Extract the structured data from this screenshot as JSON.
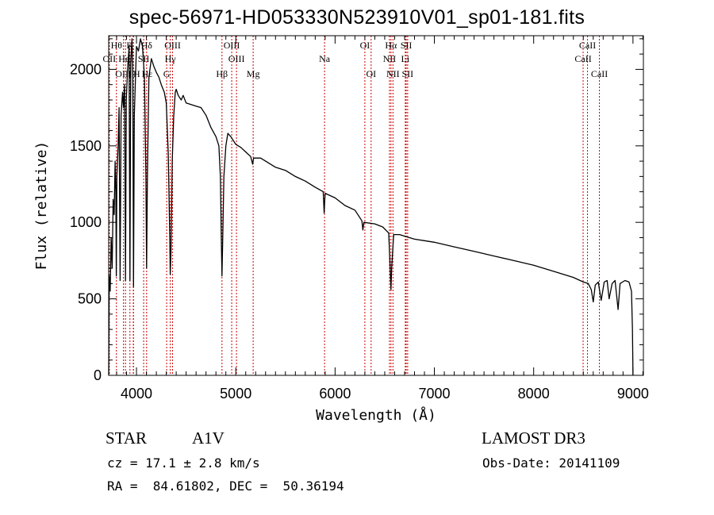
{
  "chart_data": {
    "type": "line",
    "title": "spec-56971-HD053330N523910V01_sp01-181.fits",
    "xlabel": "Wavelength (Å)",
    "ylabel": "Flux (relative)",
    "xlim": [
      3720,
      9105
    ],
    "ylim": [
      0,
      2220
    ],
    "xticks": [
      4000,
      5000,
      6000,
      7000,
      8000,
      9000
    ],
    "xtick_labels": [
      "4000",
      "5000",
      "6000",
      "7000",
      "8000",
      "9000"
    ],
    "yticks": [
      0,
      500,
      1000,
      1500,
      2000
    ],
    "ytick_labels": [
      "0",
      "500",
      "1000",
      "1500",
      "2000"
    ],
    "grid": false,
    "series": [
      {
        "name": "spectrum",
        "color": "#000000",
        "points": [
          [
            3720,
            0
          ],
          [
            3722,
            300
          ],
          [
            3725,
            650
          ],
          [
            3735,
            550
          ],
          [
            3745,
            900
          ],
          [
            3755,
            700
          ],
          [
            3765,
            1150
          ],
          [
            3775,
            1050
          ],
          [
            3785,
            1400
          ],
          [
            3792,
            1200
          ],
          [
            3797,
            650
          ],
          [
            3802,
            1300
          ],
          [
            3815,
            1500
          ],
          [
            3825,
            1750
          ],
          [
            3835,
            620
          ],
          [
            3845,
            1700
          ],
          [
            3860,
            1850
          ],
          [
            3869,
            1750
          ],
          [
            3880,
            1900
          ],
          [
            3889,
            620
          ],
          [
            3897,
            1800
          ],
          [
            3910,
            2000
          ],
          [
            3925,
            2150
          ],
          [
            3934,
            620
          ],
          [
            3942,
            2050
          ],
          [
            3955,
            2200
          ],
          [
            3963,
            1950
          ],
          [
            3970,
            580
          ],
          [
            3978,
            1700
          ],
          [
            3990,
            1950
          ],
          [
            4000,
            2150
          ],
          [
            4020,
            2120
          ],
          [
            4040,
            2200
          ],
          [
            4060,
            2150
          ],
          [
            4080,
            1950
          ],
          [
            4095,
            1300
          ],
          [
            4102,
            700
          ],
          [
            4110,
            1300
          ],
          [
            4125,
            1950
          ],
          [
            4150,
            2070
          ],
          [
            4175,
            2020
          ],
          [
            4200,
            1980
          ],
          [
            4225,
            1950
          ],
          [
            4250,
            1900
          ],
          [
            4280,
            1850
          ],
          [
            4300,
            1780
          ],
          [
            4320,
            1450
          ],
          [
            4335,
            900
          ],
          [
            4340,
            660
          ],
          [
            4347,
            800
          ],
          [
            4360,
            1400
          ],
          [
            4375,
            1700
          ],
          [
            4390,
            1850
          ],
          [
            4400,
            1870
          ],
          [
            4420,
            1830
          ],
          [
            4450,
            1800
          ],
          [
            4470,
            1830
          ],
          [
            4500,
            1780
          ],
          [
            4550,
            1770
          ],
          [
            4600,
            1760
          ],
          [
            4650,
            1750
          ],
          [
            4700,
            1700
          ],
          [
            4750,
            1620
          ],
          [
            4800,
            1560
          ],
          [
            4830,
            1500
          ],
          [
            4845,
            1300
          ],
          [
            4855,
            850
          ],
          [
            4861,
            650
          ],
          [
            4867,
            850
          ],
          [
            4880,
            1300
          ],
          [
            4900,
            1500
          ],
          [
            4920,
            1582
          ],
          [
            4950,
            1560
          ],
          [
            5000,
            1510
          ],
          [
            5050,
            1490
          ],
          [
            5100,
            1460
          ],
          [
            5150,
            1430
          ],
          [
            5170,
            1380
          ],
          [
            5180,
            1420
          ],
          [
            5250,
            1420
          ],
          [
            5300,
            1400
          ],
          [
            5400,
            1360
          ],
          [
            5500,
            1340
          ],
          [
            5600,
            1300
          ],
          [
            5700,
            1270
          ],
          [
            5800,
            1230
          ],
          [
            5880,
            1200
          ],
          [
            5890,
            1060
          ],
          [
            5895,
            1130
          ],
          [
            5900,
            1190
          ],
          [
            6000,
            1160
          ],
          [
            6100,
            1110
          ],
          [
            6200,
            1080
          ],
          [
            6270,
            1010
          ],
          [
            6280,
            950
          ],
          [
            6290,
            1000
          ],
          [
            6400,
            990
          ],
          [
            6480,
            970
          ],
          [
            6540,
            930
          ],
          [
            6555,
            700
          ],
          [
            6563,
            560
          ],
          [
            6570,
            700
          ],
          [
            6590,
            920
          ],
          [
            6650,
            920
          ],
          [
            6700,
            910
          ],
          [
            6800,
            890
          ],
          [
            6900,
            880
          ],
          [
            7000,
            870
          ],
          [
            7200,
            840
          ],
          [
            7400,
            810
          ],
          [
            7600,
            780
          ],
          [
            7800,
            750
          ],
          [
            8000,
            720
          ],
          [
            8200,
            680
          ],
          [
            8400,
            640
          ],
          [
            8500,
            610
          ],
          [
            8550,
            600
          ],
          [
            8580,
            560
          ],
          [
            8600,
            480
          ],
          [
            8620,
            590
          ],
          [
            8650,
            610
          ],
          [
            8680,
            490
          ],
          [
            8710,
            610
          ],
          [
            8740,
            620
          ],
          [
            8760,
            500
          ],
          [
            8790,
            600
          ],
          [
            8820,
            620
          ],
          [
            8850,
            430
          ],
          [
            8870,
            600
          ],
          [
            8920,
            620
          ],
          [
            8960,
            610
          ],
          [
            8985,
            550
          ],
          [
            8995,
            300
          ],
          [
            9000,
            0
          ]
        ]
      }
    ],
    "line_marker_color": "#cc0000",
    "line_markers": [
      {
        "label": "OII",
        "wavelength": 3727,
        "row": 2
      },
      {
        "label": "Hθ",
        "wavelength": 3798,
        "row": 1
      },
      {
        "label": "OIII",
        "wavelength": 3869,
        "row": 3
      },
      {
        "label": "HeI",
        "wavelength": 3889,
        "row": 2
      },
      {
        "label": "K",
        "wavelength": 3934,
        "row": 1
      },
      {
        "label": "H",
        "wavelength": 3968,
        "row": 3
      },
      {
        "label": "Hε",
        "wavelength": 3970,
        "row": 3
      },
      {
        "label": "SII",
        "wavelength": 4072,
        "row": 2
      },
      {
        "label": "Hδ",
        "wavelength": 4102,
        "row": 1
      },
      {
        "label": "G",
        "wavelength": 4304,
        "row": 3
      },
      {
        "label": "Hγ",
        "wavelength": 4340,
        "row": 2
      },
      {
        "label": "OIII",
        "wavelength": 4363,
        "row": 1
      },
      {
        "label": "Hβ",
        "wavelength": 4861,
        "row": 3
      },
      {
        "label": "OIII",
        "wavelength": 4959,
        "row": 1
      },
      {
        "label": "OIII",
        "wavelength": 5007,
        "row": 2
      },
      {
        "label": "Mg",
        "wavelength": 5175,
        "row": 3
      },
      {
        "label": "Na",
        "wavelength": 5894,
        "row": 2
      },
      {
        "label": "OI",
        "wavelength": 6300,
        "row": 1
      },
      {
        "label": "OI",
        "wavelength": 6363,
        "row": 3
      },
      {
        "label": "NII",
        "wavelength": 6548,
        "row": 2
      },
      {
        "label": "Hα",
        "wavelength": 6563,
        "row": 1
      },
      {
        "label": "NII",
        "wavelength": 6583,
        "row": 3
      },
      {
        "label": "Li",
        "wavelength": 6707,
        "row": 2
      },
      {
        "label": "SII",
        "wavelength": 6716,
        "row": 1
      },
      {
        "label": "SII",
        "wavelength": 6731,
        "row": 3
      },
      {
        "label": "CaII",
        "wavelength": 8498,
        "row": 2
      },
      {
        "label": "CaII",
        "wavelength": 8542,
        "row": 1
      },
      {
        "label": "CaII",
        "wavelength": 8662,
        "row": 3
      }
    ]
  },
  "info": {
    "object_type": "STAR",
    "spectral_class": "A1V",
    "survey": "LAMOST DR3",
    "redshift": "cz = 17.1 ± 2.8 km/s",
    "obs_date": "Obs-Date: 20141109",
    "coords": "RA =  84.61802, DEC =  50.36194"
  }
}
